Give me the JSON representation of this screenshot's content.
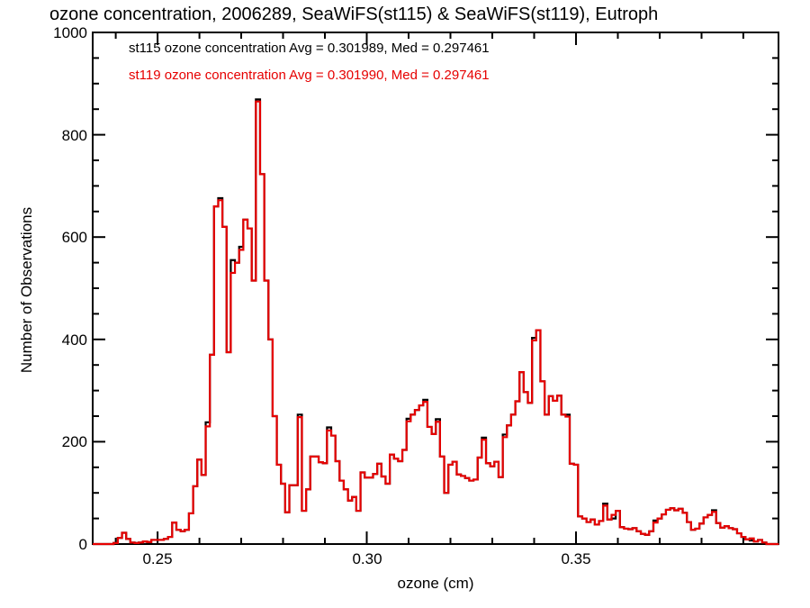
{
  "title": "ozone concentration, 2006289, SeaWiFS(st115) & SeaWiFS(st119), Eutroph",
  "axes": {
    "x_label": "ozone (cm)",
    "y_label": "Number of Observations",
    "x_tick_labels": [
      "0.25",
      "0.30",
      "0.35"
    ],
    "y_tick_labels": [
      "0",
      "200",
      "400",
      "600",
      "800",
      "1000"
    ]
  },
  "legend": {
    "line1": "st115 ozone concentration Avg = 0.301989, Med = 0.297461",
    "line2": "st119 ozone concentration Avg = 0.301990, Med = 0.297461"
  },
  "chart_data": {
    "type": "line",
    "subtype": "step-histogram",
    "title": "ozone concentration, 2006289, SeaWiFS(st115) & SeaWiFS(st119), Eutroph",
    "xlabel": "ozone (cm)",
    "ylabel": "Number of Observations",
    "xlim": [
      0.2345,
      0.3984
    ],
    "ylim": [
      0,
      1000
    ],
    "x_major_ticks": [
      0.25,
      0.3,
      0.35
    ],
    "x_minor_step": 0.01,
    "y_major_ticks": [
      0,
      200,
      400,
      600,
      800,
      1000
    ],
    "y_minor_step": 50,
    "grid": "off",
    "legend_position": "top-left-inside",
    "bin_start": 0.2345,
    "bin_width": 0.001,
    "series": [
      {
        "name": "st115 ozone concentration",
        "color": "#000000",
        "avg": "0.301989",
        "med": "0.297461",
        "values": [
          0,
          0,
          0,
          0,
          0,
          2,
          12,
          22,
          10,
          3,
          2,
          3,
          5,
          4,
          8,
          8,
          8,
          10,
          14,
          42,
          28,
          25,
          28,
          60,
          113,
          165,
          135,
          238,
          370,
          660,
          676,
          620,
          375,
          555,
          550,
          581,
          634,
          617,
          515,
          869,
          723,
          515,
          400,
          250,
          155,
          118,
          62,
          115,
          115,
          253,
          65,
          107,
          171,
          171,
          160,
          158,
          228,
          212,
          162,
          124,
          107,
          85,
          92,
          65,
          140,
          130,
          130,
          137,
          157,
          132,
          118,
          175,
          167,
          162,
          184,
          245,
          253,
          262,
          271,
          282,
          229,
          215,
          244,
          171,
          100,
          155,
          161,
          136,
          133,
          129,
          124,
          126,
          169,
          208,
          158,
          152,
          161,
          131,
          214,
          232,
          253,
          279,
          336,
          297,
          276,
          403,
          418,
          318,
          253,
          289,
          280,
          290,
          253,
          253,
          157,
          155,
          54,
          50,
          43,
          48,
          38,
          45,
          79,
          48,
          50,
          65,
          33,
          30,
          29,
          31,
          25,
          20,
          18,
          25,
          46,
          50,
          58,
          67,
          70,
          66,
          69,
          61,
          43,
          28,
          30,
          40,
          52,
          57,
          66,
          41,
          32,
          35,
          31,
          29,
          21,
          14,
          9,
          7,
          5,
          8,
          3,
          0,
          0,
          0
        ]
      },
      {
        "name": "st119 ozone concentration",
        "color": "#e60000",
        "avg": "0.301990",
        "med": "0.297461",
        "values": [
          0,
          0,
          0,
          0,
          0,
          2,
          12,
          22,
          10,
          3,
          2,
          3,
          5,
          4,
          8,
          8,
          8,
          10,
          14,
          42,
          28,
          25,
          28,
          60,
          113,
          165,
          135,
          230,
          370,
          660,
          672,
          620,
          375,
          530,
          550,
          575,
          634,
          617,
          515,
          865,
          723,
          515,
          400,
          250,
          155,
          118,
          62,
          115,
          115,
          248,
          65,
          107,
          171,
          171,
          160,
          158,
          222,
          212,
          162,
          124,
          107,
          85,
          92,
          65,
          140,
          130,
          130,
          137,
          157,
          132,
          118,
          175,
          167,
          162,
          184,
          240,
          253,
          262,
          271,
          278,
          229,
          215,
          239,
          171,
          100,
          155,
          161,
          136,
          133,
          129,
          124,
          126,
          169,
          204,
          158,
          152,
          161,
          131,
          209,
          232,
          253,
          279,
          336,
          297,
          276,
          398,
          418,
          318,
          253,
          289,
          280,
          290,
          253,
          249,
          157,
          155,
          54,
          50,
          43,
          48,
          38,
          45,
          75,
          48,
          57,
          65,
          33,
          30,
          29,
          31,
          25,
          20,
          18,
          25,
          42,
          50,
          58,
          67,
          70,
          66,
          69,
          61,
          43,
          28,
          30,
          40,
          52,
          57,
          63,
          41,
          32,
          35,
          31,
          29,
          21,
          14,
          9,
          11,
          5,
          8,
          3,
          0,
          0,
          0
        ]
      }
    ]
  }
}
